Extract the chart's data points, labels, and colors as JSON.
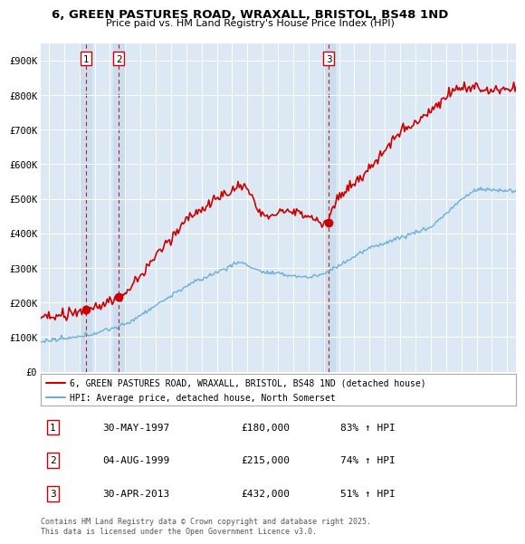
{
  "title": "6, GREEN PASTURES ROAD, WRAXALL, BRISTOL, BS48 1ND",
  "subtitle": "Price paid vs. HM Land Registry's House Price Index (HPI)",
  "legend_line1": "6, GREEN PASTURES ROAD, WRAXALL, BRISTOL, BS48 1ND (detached house)",
  "legend_line2": "HPI: Average price, detached house, North Somerset",
  "footer": "Contains HM Land Registry data © Crown copyright and database right 2025.\nThis data is licensed under the Open Government Licence v3.0.",
  "transactions": [
    {
      "num": 1,
      "date_label": "30-MAY-1997",
      "price": 180000,
      "pct": "83% ↑ HPI",
      "year": 1997.42
    },
    {
      "num": 2,
      "date_label": "04-AUG-1999",
      "price": 215000,
      "pct": "74% ↑ HPI",
      "year": 1999.59
    },
    {
      "num": 3,
      "date_label": "30-APR-2013",
      "price": 432000,
      "pct": "51% ↑ HPI",
      "year": 2013.33
    }
  ],
  "hpi_color": "#6baed6",
  "price_color": "#cc0000",
  "dashed_color": "#cc0000",
  "band_color": "#c8ddf0",
  "plot_bg_color": "#dce9f5",
  "ylim": [
    0,
    950000
  ],
  "yticks": [
    0,
    100000,
    200000,
    300000,
    400000,
    500000,
    600000,
    700000,
    800000,
    900000
  ],
  "xmin": 1994.5,
  "xmax": 2025.6
}
